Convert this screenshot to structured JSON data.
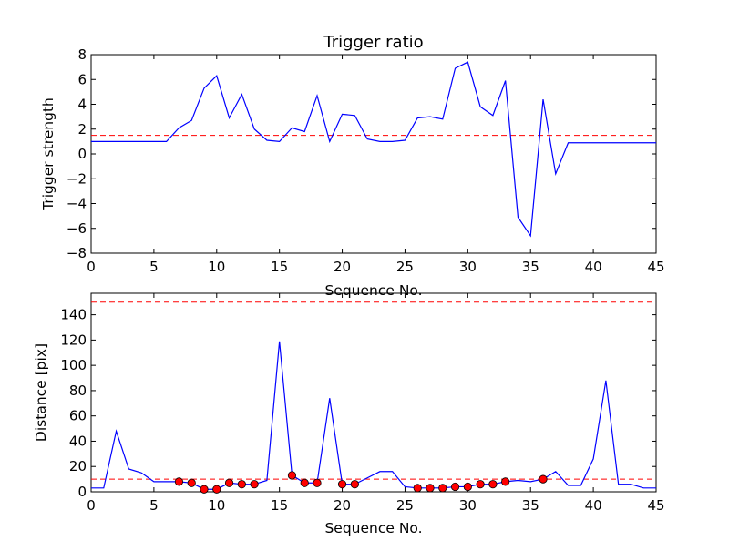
{
  "chart_data": [
    {
      "type": "line",
      "title": "Trigger ratio",
      "xlabel": "Sequence No.",
      "ylabel": "Trigger strength",
      "xlim": [
        0,
        45
      ],
      "ylim": [
        -8,
        8
      ],
      "xticks": [
        0,
        5,
        10,
        15,
        20,
        25,
        30,
        35,
        40,
        45
      ],
      "yticks": [
        -8,
        -6,
        -4,
        -2,
        0,
        2,
        4,
        6,
        8
      ],
      "series": [
        {
          "color": "#0000ff",
          "x": [
            0,
            1,
            2,
            3,
            4,
            5,
            6,
            7,
            8,
            9,
            10,
            11,
            12,
            13,
            14,
            15,
            16,
            17,
            18,
            19,
            20,
            21,
            22,
            23,
            24,
            25,
            26,
            27,
            28,
            29,
            30,
            31,
            32,
            33,
            34,
            35,
            36,
            37,
            38,
            39,
            40,
            41,
            42,
            43,
            44,
            45
          ],
          "y": [
            1,
            1,
            1,
            1,
            1,
            1,
            1,
            2.1,
            2.7,
            5.3,
            6.3,
            2.9,
            4.8,
            2,
            1.1,
            1,
            2.1,
            1.8,
            4.7,
            1,
            3.2,
            3.1,
            1.2,
            1,
            1,
            1.1,
            2.9,
            3,
            2.8,
            6.9,
            7.4,
            3.8,
            3.1,
            5.9,
            -5.1,
            -6.6,
            4.4,
            -1.6,
            0.9,
            0.9,
            0.9,
            0.9,
            0.9,
            0.9,
            0.9,
            0.9
          ]
        }
      ],
      "hlines": [
        {
          "y": 1.5,
          "color": "#ff0000",
          "style": "dashed"
        }
      ],
      "grid": false
    },
    {
      "type": "line",
      "title": "",
      "xlabel": "Sequence No.",
      "ylabel": "Distance [pix]",
      "xlim": [
        0,
        45
      ],
      "ylim": [
        0,
        157
      ],
      "xticks": [
        0,
        5,
        10,
        15,
        20,
        25,
        30,
        35,
        40,
        45
      ],
      "yticks": [
        0,
        20,
        40,
        60,
        80,
        100,
        120,
        140
      ],
      "series": [
        {
          "color": "#0000ff",
          "x": [
            0,
            1,
            2,
            3,
            4,
            5,
            6,
            7,
            8,
            9,
            10,
            11,
            12,
            13,
            14,
            15,
            16,
            17,
            18,
            19,
            20,
            21,
            22,
            23,
            24,
            25,
            26,
            27,
            28,
            29,
            30,
            31,
            32,
            33,
            34,
            35,
            36,
            37,
            38,
            39,
            40,
            41,
            42,
            43,
            44,
            45
          ],
          "y": [
            3,
            3,
            48,
            18,
            15,
            8,
            8,
            8,
            7,
            2,
            2,
            7,
            6,
            6,
            9,
            119,
            13,
            7,
            7,
            74,
            6,
            6,
            11,
            16,
            16,
            4,
            3,
            3,
            3,
            4,
            4,
            6,
            6,
            8,
            9,
            8,
            10,
            16,
            5,
            5,
            26,
            88,
            6,
            6,
            3,
            3
          ]
        }
      ],
      "markers": {
        "color": "#ff0000",
        "x": [
          7,
          8,
          9,
          10,
          11,
          12,
          13,
          16,
          17,
          18,
          20,
          21,
          26,
          27,
          28,
          29,
          30,
          31,
          32,
          33,
          36
        ],
        "y": [
          8,
          7,
          2,
          2,
          7,
          6,
          6,
          13,
          7,
          7,
          6,
          6,
          3,
          3,
          3,
          4,
          4,
          6,
          6,
          8,
          10
        ]
      },
      "hlines": [
        {
          "y": 150,
          "color": "#ff0000",
          "style": "dashed"
        },
        {
          "y": 10,
          "color": "#ff0000",
          "style": "dashed"
        }
      ],
      "grid": false
    }
  ]
}
